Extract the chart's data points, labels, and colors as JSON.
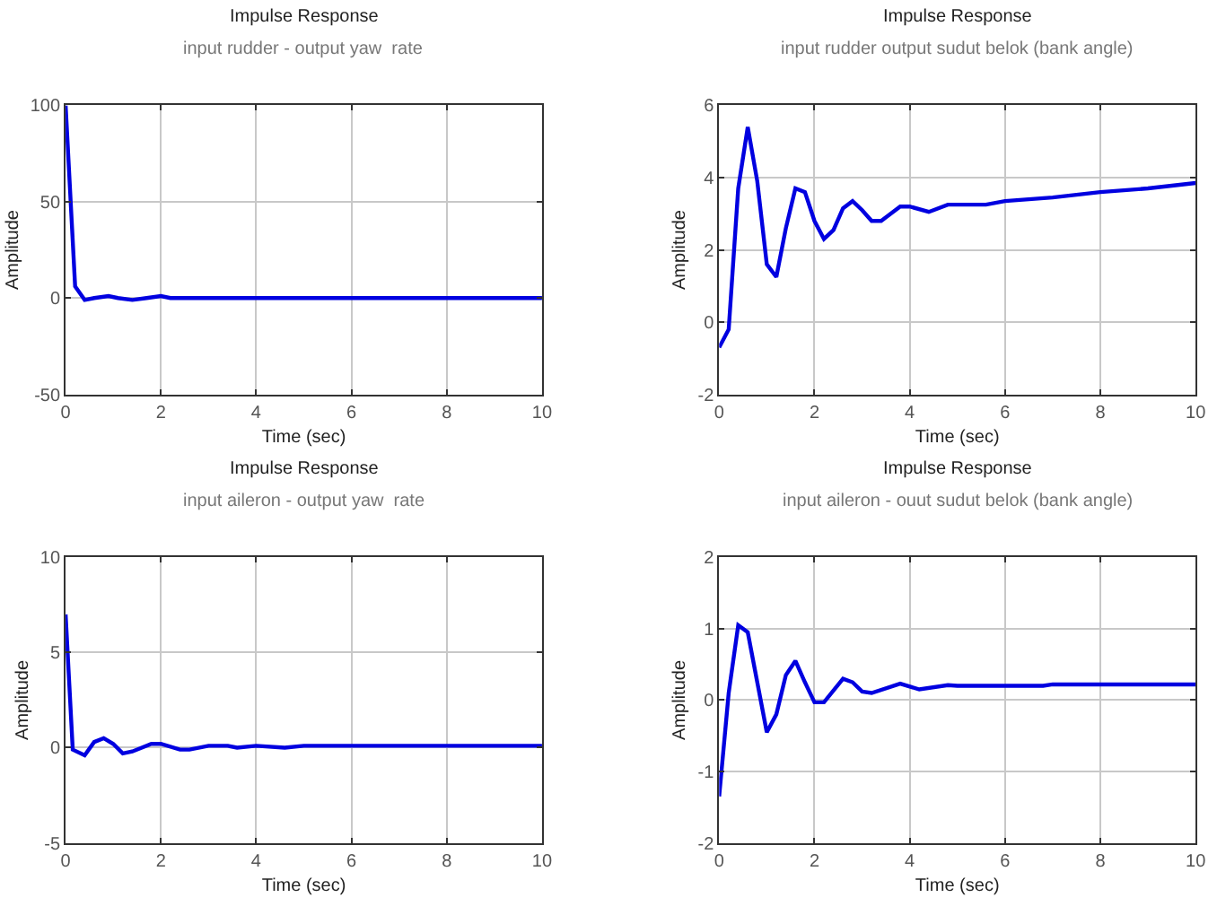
{
  "chart_data": [
    {
      "type": "line",
      "title": "Impulse Response",
      "subtitle": "input rudder - output yaw  rate",
      "xlabel": "Time (sec)",
      "ylabel": "Amplitude",
      "xlim": [
        0,
        10
      ],
      "xticks": [
        0,
        2,
        4,
        6,
        8,
        10
      ],
      "ylim": [
        -50,
        100
      ],
      "yticks": [
        -50,
        0,
        50,
        100
      ],
      "grid": true,
      "line_style": "solid",
      "series": [
        {
          "color": "#0000e0",
          "x": [
            0,
            0.2,
            0.4,
            0.6,
            0.9,
            1.1,
            1.4,
            1.7,
            2.0,
            2.2,
            10
          ],
          "values": [
            100,
            6,
            -1,
            0,
            1,
            0,
            -1,
            0,
            1,
            0,
            0
          ]
        }
      ]
    },
    {
      "type": "line",
      "title": "Impulse Response",
      "subtitle": "input rudder output sudut belok (bank angle)",
      "xlabel": "Time (sec)",
      "ylabel": "Amplitude",
      "xlim": [
        0,
        10
      ],
      "xticks": [
        0,
        2,
        4,
        6,
        8,
        10
      ],
      "ylim": [
        -2,
        6
      ],
      "yticks": [
        -2,
        0,
        2,
        4,
        6
      ],
      "grid": true,
      "line_style": "solid",
      "series": [
        {
          "color": "#0000e0",
          "x": [
            0,
            0.2,
            0.4,
            0.6,
            0.8,
            1.0,
            1.2,
            1.4,
            1.6,
            1.8,
            2.0,
            2.2,
            2.4,
            2.6,
            2.8,
            3.0,
            3.2,
            3.4,
            3.6,
            3.8,
            4.0,
            4.4,
            4.8,
            5.6,
            6.0,
            7.0,
            8.0,
            9.0,
            10
          ],
          "values": [
            -0.7,
            -0.2,
            3.7,
            5.4,
            3.9,
            1.6,
            1.25,
            2.6,
            3.7,
            3.6,
            2.8,
            2.3,
            2.55,
            3.15,
            3.35,
            3.1,
            2.8,
            2.8,
            3.0,
            3.2,
            3.2,
            3.05,
            3.25,
            3.25,
            3.35,
            3.45,
            3.6,
            3.7,
            3.85
          ]
        }
      ]
    },
    {
      "type": "line",
      "title": "Impulse Response",
      "subtitle": "input aileron - output yaw  rate",
      "xlabel": "Time (sec)",
      "ylabel": "Amplitude",
      "xlim": [
        0,
        10
      ],
      "xticks": [
        0,
        2,
        4,
        6,
        8,
        10
      ],
      "ylim": [
        -5,
        10
      ],
      "yticks": [
        -5,
        0,
        5,
        10
      ],
      "grid": true,
      "line_style": "solid",
      "series": [
        {
          "color": "#0000e0",
          "x": [
            0,
            0.15,
            0.4,
            0.6,
            0.8,
            1.0,
            1.2,
            1.4,
            1.8,
            2.0,
            2.4,
            2.6,
            3.0,
            3.4,
            3.6,
            4.0,
            4.6,
            5.0,
            10
          ],
          "values": [
            7.0,
            -0.1,
            -0.4,
            0.3,
            0.5,
            0.2,
            -0.3,
            -0.2,
            0.2,
            0.2,
            -0.1,
            -0.1,
            0.1,
            0.1,
            0,
            0.1,
            0,
            0.1,
            0.1
          ]
        }
      ]
    },
    {
      "type": "line",
      "title": "Impulse Response",
      "subtitle": "input aileron - ouut sudut belok (bank angle)",
      "xlabel": "Time (sec)",
      "ylabel": "Amplitude",
      "xlim": [
        0,
        10
      ],
      "xticks": [
        0,
        2,
        4,
        6,
        8,
        10
      ],
      "ylim": [
        -2,
        2
      ],
      "yticks": [
        -2,
        -1,
        0,
        1,
        2
      ],
      "grid": true,
      "line_style": "solid",
      "series": [
        {
          "color": "#0000e0",
          "x": [
            0,
            0.2,
            0.4,
            0.6,
            0.8,
            1.0,
            1.2,
            1.4,
            1.6,
            1.8,
            2.0,
            2.2,
            2.6,
            2.8,
            3.0,
            3.2,
            3.8,
            4.2,
            4.8,
            5.0,
            6.8,
            7.0,
            10
          ],
          "values": [
            -1.35,
            0.1,
            1.05,
            0.95,
            0.25,
            -0.45,
            -0.2,
            0.35,
            0.55,
            0.25,
            -0.03,
            -0.03,
            0.3,
            0.25,
            0.12,
            0.1,
            0.23,
            0.15,
            0.21,
            0.2,
            0.2,
            0.22,
            0.22
          ]
        }
      ]
    }
  ]
}
